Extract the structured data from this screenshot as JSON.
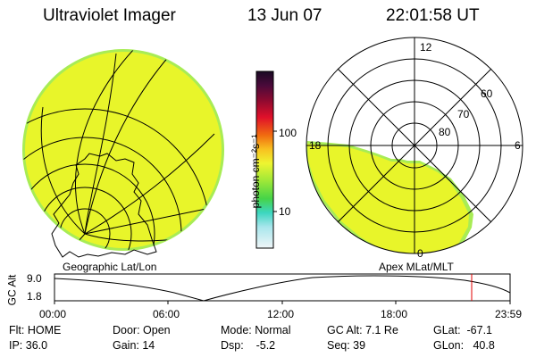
{
  "header": {
    "instrument": "Ultraviolet Imager",
    "date": "13 Jun 07",
    "time": "22:01:58 UT"
  },
  "colorbar": {
    "unit_label": "photon cm⁻²s⁻¹",
    "ticks": [
      "100",
      "10"
    ]
  },
  "geo_panel": {
    "label": "Geographic Lat/Lon"
  },
  "apex_panel": {
    "label": "Apex MLat/MLT",
    "lat_labels": [
      "60",
      "70",
      "80"
    ],
    "mlt_labels": [
      "12",
      "18",
      "6",
      "0"
    ]
  },
  "altitude_plot": {
    "ylabel": "GC Alt",
    "yticks": [
      "9.0",
      "1.8"
    ],
    "xticks": [
      "00:00",
      "06:00",
      "12:00",
      "18:00",
      "23:59"
    ],
    "marker_color": "#e00000"
  },
  "info": {
    "flt": "Flt: HOME",
    "ip": "IP: 36.0",
    "door": "Door: Open",
    "gain": "Gain: 14",
    "mode": "Mode: Normal",
    "dsp": "Dsp:    -5.2",
    "gcalt": "GC Alt: 7.1 Re",
    "seq": "Seq: 39",
    "glat": "GLat:  -67.1",
    "glon": "GLon:   40.8"
  },
  "colors": {
    "emission": "#e8f52a",
    "emission_edge": "#9fe84a"
  }
}
